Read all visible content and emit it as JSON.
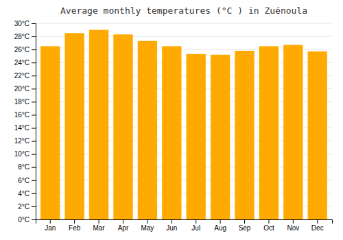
{
  "chart_data": {
    "type": "bar",
    "title": "Average monthly temperatures (°C ) in Zuénoula",
    "categories": [
      "Jan",
      "Feb",
      "Mar",
      "Apr",
      "May",
      "Jun",
      "Jul",
      "Aug",
      "Sep",
      "Oct",
      "Nov",
      "Dec"
    ],
    "values": [
      26.5,
      28.5,
      29.0,
      28.3,
      27.3,
      26.5,
      25.3,
      25.2,
      25.8,
      26.5,
      26.7,
      25.7
    ],
    "color": "#FFAA00",
    "ylim": [
      0,
      30
    ],
    "yticks": [
      {
        "value": 0,
        "label": "0°C"
      },
      {
        "value": 2,
        "label": "2°C"
      },
      {
        "value": 4,
        "label": "4°C"
      },
      {
        "value": 6,
        "label": "6°C"
      },
      {
        "value": 8,
        "label": "8°C"
      },
      {
        "value": 10,
        "label": "10°C"
      },
      {
        "value": 12,
        "label": "12°C"
      },
      {
        "value": 14,
        "label": "14°C"
      },
      {
        "value": 16,
        "label": "16°C"
      },
      {
        "value": 18,
        "label": "18°C"
      },
      {
        "value": 20,
        "label": "20°C"
      },
      {
        "value": 22,
        "label": "22°C"
      },
      {
        "value": 24,
        "label": "24°C"
      },
      {
        "value": 26,
        "label": "26°C"
      },
      {
        "value": 28,
        "label": "28°C"
      },
      {
        "value": 30,
        "label": "30°C"
      }
    ],
    "grid": true
  }
}
